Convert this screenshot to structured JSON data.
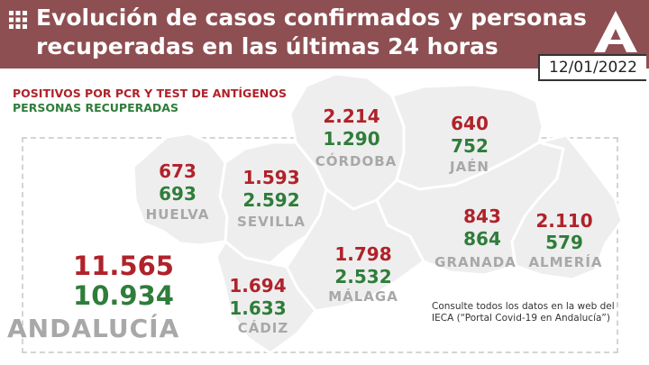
{
  "header": {
    "title_line1": "Evolución de casos confirmados y personas",
    "title_line2": "recuperadas en las últimas 24 horas",
    "date": "12/01/2022",
    "icon": "grid-icon",
    "logo": "junta-andalucia-logo"
  },
  "legend": {
    "positives": "POSITIVOS POR PCR Y TEST DE ANTÍGENOS",
    "recovered": "PERSONAS RECUPERADAS"
  },
  "colors": {
    "header_bg": "#8e4f52",
    "positives": "#b0222a",
    "recovered": "#2f7d3a",
    "province_fill": "#eeeeee",
    "label_gray": "#a8a8a8"
  },
  "provinces": [
    {
      "id": "huelva",
      "name": "HUELVA",
      "positives": "673",
      "recovered": "693"
    },
    {
      "id": "sevilla",
      "name": "SEVILLA",
      "positives": "1.593",
      "recovered": "2.592"
    },
    {
      "id": "cordoba",
      "name": "CÓRDOBA",
      "positives": "2.214",
      "recovered": "1.290"
    },
    {
      "id": "jaen",
      "name": "JAÉN",
      "positives": "640",
      "recovered": "752"
    },
    {
      "id": "granada",
      "name": "GRANADA",
      "positives": "843",
      "recovered": "864"
    },
    {
      "id": "almeria",
      "name": "ALMERÍA",
      "positives": "2.110",
      "recovered": "579"
    },
    {
      "id": "malaga",
      "name": "MÁLAGA",
      "positives": "1.798",
      "recovered": "2.532"
    },
    {
      "id": "cadiz",
      "name": "CÁDIZ",
      "positives": "1.694",
      "recovered": "1.633"
    }
  ],
  "total": {
    "name": "ANDALUCÍA",
    "positives": "11.565",
    "recovered": "10.934"
  },
  "note": {
    "line1": "Consulte todos los datos en la web del",
    "line2": "IECA (“Portal Covid-19 en Andalucía”)"
  }
}
